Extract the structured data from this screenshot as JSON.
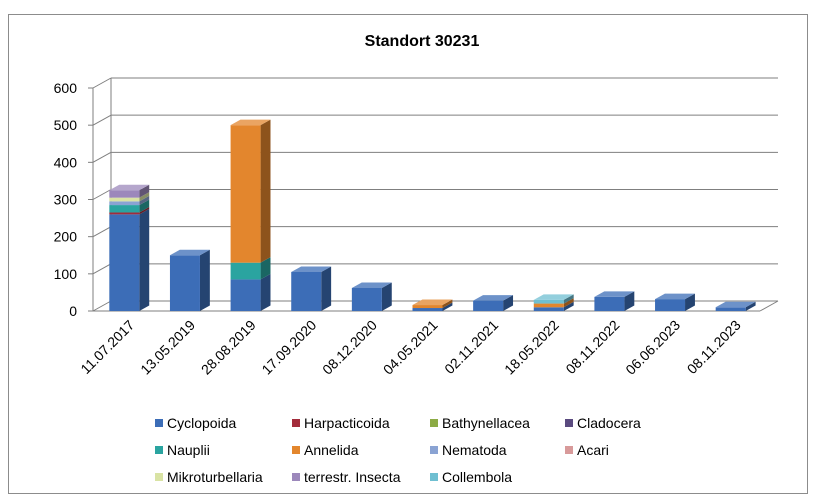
{
  "chart_data": {
    "type": "bar",
    "stacked": true,
    "three_d": true,
    "title": "Standort 30231",
    "xlabel": "",
    "ylabel": "",
    "ylim": [
      0,
      600
    ],
    "yticks": [
      0,
      100,
      200,
      300,
      400,
      500,
      600
    ],
    "grid": true,
    "legend_position": "bottom",
    "categories": [
      "11.07.2017",
      "13.05.2019",
      "28.08.2019",
      "17.09.2020",
      "08.12.2020",
      "04.05.2021",
      "02.11.2021",
      "18.05.2022",
      "08.11.2022",
      "06.06.2023",
      "08.11.2023"
    ],
    "series": [
      {
        "name": "Cyclopoida",
        "color": "#3c6db7",
        "values": [
          260,
          150,
          85,
          105,
          62,
          8,
          28,
          10,
          38,
          32,
          10
        ]
      },
      {
        "name": "Harpacticoida",
        "color": "#a32c3b",
        "values": [
          5,
          0,
          0,
          0,
          0,
          0,
          0,
          0,
          0,
          0,
          0
        ]
      },
      {
        "name": "Bathynellacea",
        "color": "#8cab45",
        "values": [
          0,
          0,
          0,
          0,
          0,
          0,
          0,
          0,
          0,
          0,
          0
        ]
      },
      {
        "name": "Cladocera",
        "color": "#5a4a7f",
        "values": [
          0,
          0,
          0,
          0,
          0,
          0,
          0,
          0,
          0,
          0,
          0
        ]
      },
      {
        "name": "Nauplii",
        "color": "#2aa4a0",
        "values": [
          20,
          0,
          45,
          0,
          0,
          0,
          0,
          0,
          0,
          0,
          0
        ]
      },
      {
        "name": "Annelida",
        "color": "#e3862d",
        "values": [
          0,
          0,
          370,
          0,
          0,
          8,
          0,
          10,
          0,
          0,
          0
        ]
      },
      {
        "name": "Nematoda",
        "color": "#8aa3d3",
        "values": [
          10,
          0,
          0,
          0,
          0,
          0,
          0,
          0,
          0,
          0,
          0
        ]
      },
      {
        "name": "Acari",
        "color": "#d89a9a",
        "values": [
          0,
          0,
          0,
          0,
          0,
          0,
          0,
          0,
          0,
          0,
          0
        ]
      },
      {
        "name": "Mikroturbellaria",
        "color": "#d9e3a4",
        "values": [
          10,
          0,
          0,
          0,
          0,
          0,
          0,
          0,
          0,
          0,
          0
        ]
      },
      {
        "name": "terrestr. Insecta",
        "color": "#9c88bb",
        "values": [
          20,
          0,
          0,
          0,
          0,
          0,
          0,
          0,
          0,
          0,
          0
        ]
      },
      {
        "name": "Collembola",
        "color": "#6fbfd1",
        "values": [
          0,
          0,
          0,
          0,
          0,
          0,
          0,
          10,
          0,
          0,
          0
        ]
      }
    ]
  }
}
